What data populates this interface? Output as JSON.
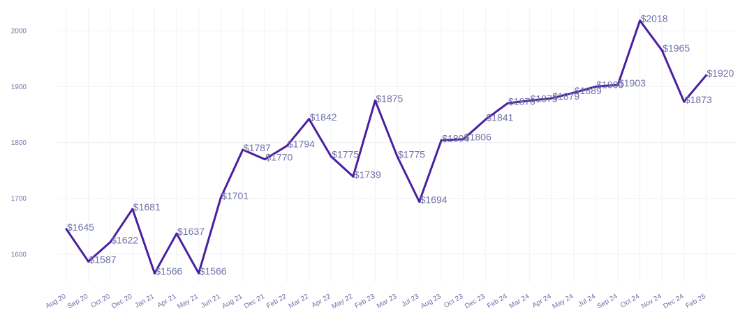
{
  "chart_data": {
    "type": "line",
    "title": "",
    "xlabel": "",
    "ylabel": "",
    "ylim": [
      1550,
      2040
    ],
    "grid": true,
    "line_color": "#4a1fa0",
    "label_color": "#6f72a8",
    "categories": [
      "Aug 20",
      "Sep 20",
      "Oct 20",
      "Dec 20",
      "Jan 21",
      "Apr 21",
      "May 21",
      "Jun 21",
      "Aug 21",
      "Dec 21",
      "Feb 22",
      "Mar 22",
      "Apr 22",
      "May 22",
      "Feb 23",
      "Mar 23",
      "Jul 23",
      "Aug 23",
      "Oct 23",
      "Dec 23",
      "Feb 24",
      "Mar 24",
      "Apr 24",
      "May 24",
      "Jul 24",
      "Sep 24",
      "Oct 24",
      "Nov 24",
      "Dec 24",
      "Feb 25"
    ],
    "y_ticks": [
      1600,
      1700,
      1800,
      1900,
      2000
    ],
    "series": [
      {
        "values": [
          1645,
          1587,
          1622,
          1681,
          1566,
          1637,
          1566,
          1701,
          1787,
          1770,
          1794,
          1842,
          1775,
          1739,
          1875,
          1775,
          1694,
          1804,
          1806,
          1841,
          1870,
          1875,
          1879,
          1889,
          1900,
          1903,
          2018,
          1965,
          1873,
          1920
        ],
        "labels": [
          "$1645",
          "$1587",
          "$1622",
          "$1681",
          "$1566",
          "$1637",
          "$1566",
          "$1701",
          "$1787",
          "$1770",
          "$1794",
          "$1842",
          "$1775",
          "$1739",
          "$1875",
          "$1775",
          "$1694",
          "$1804",
          "$1806",
          "$1841",
          "$1870",
          "$1875",
          "$1879",
          "$1889",
          "$1900",
          "$1903",
          "$2018",
          "$1965",
          "$1873",
          "$1920"
        ]
      }
    ]
  }
}
